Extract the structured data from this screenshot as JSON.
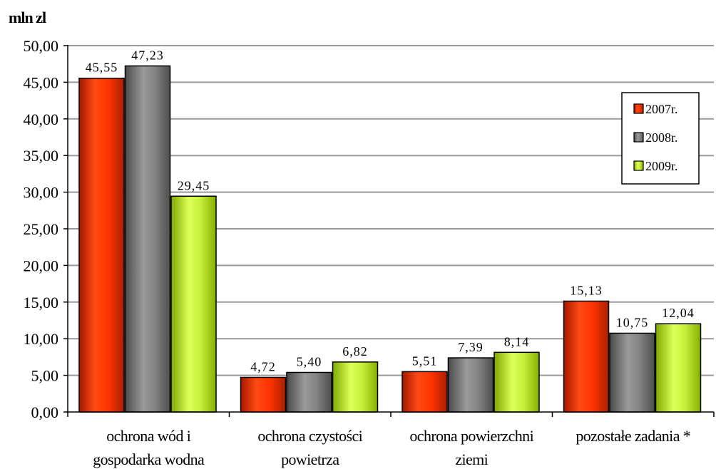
{
  "chart_data": {
    "type": "bar",
    "ylabel": "mln zl",
    "ylim": [
      0,
      50
    ],
    "ytick_step": 5,
    "ytick_labels": [
      "0,00",
      "5,00",
      "10,00",
      "15,00",
      "20,00",
      "25,00",
      "30,00",
      "35,00",
      "40,00",
      "45,00",
      "50,00"
    ],
    "grid": true,
    "legend_position": "top-right",
    "categories": [
      [
        "ochrona wód i",
        "gospodarka wodna"
      ],
      [
        "ochrona czystości",
        "powietrza"
      ],
      [
        "ochrona powierzchni",
        "ziemi"
      ],
      [
        "pozostałe zadania *"
      ]
    ],
    "series": [
      {
        "name": "2007r.",
        "color": "#ff3300",
        "values": [
          45.55,
          4.72,
          5.51,
          15.13
        ],
        "labels": [
          "45,55",
          "4,72",
          "5,51",
          "15,13"
        ]
      },
      {
        "name": "2008r.",
        "color": "#808080",
        "values": [
          47.23,
          5.4,
          7.39,
          10.75
        ],
        "labels": [
          "47,23",
          "5,40",
          "7,39",
          "10,75"
        ]
      },
      {
        "name": "2009r.",
        "color": "#b3e62e",
        "values": [
          29.45,
          6.82,
          8.14,
          12.04
        ],
        "labels": [
          "29,45",
          "6,82",
          "8,14",
          "12,04"
        ]
      }
    ]
  }
}
